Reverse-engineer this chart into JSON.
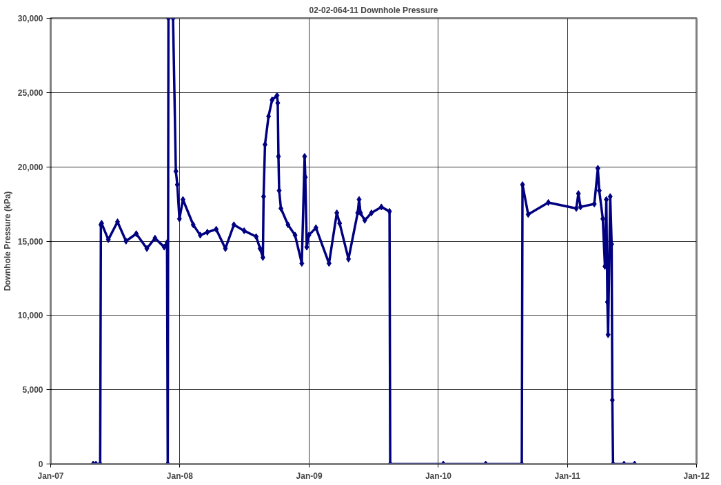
{
  "chart_data": {
    "type": "line",
    "title": "02-02-064-11 Downhole Pressure",
    "ylabel": "Downhole Pressure (kPa)",
    "x": [
      "2007-05-01",
      "2007-05-09",
      "2007-05-21",
      "2007-05-23",
      "2007-05-25",
      "2007-06-13",
      "2007-07-09",
      "2007-08-02",
      "2007-08-31",
      "2007-09-30",
      "2007-10-23",
      "2007-11-18",
      "2007-11-26",
      "2007-11-28",
      "2007-11-30",
      "2007-12-05",
      "2007-12-13",
      "2007-12-21",
      "2007-12-25",
      "2007-12-31",
      "2008-01-10",
      "2008-02-08",
      "2008-02-28",
      "2008-03-19",
      "2008-04-13",
      "2008-05-09",
      "2008-06-02",
      "2008-07-01",
      "2008-08-04",
      "2008-08-15",
      "2008-08-23",
      "2008-08-25",
      "2008-08-29",
      "2008-09-08",
      "2008-09-18",
      "2008-10-02",
      "2008-10-04",
      "2008-10-06",
      "2008-10-08",
      "2008-10-13",
      "2008-11-02",
      "2008-11-22",
      "2008-12-11",
      "2008-12-19",
      "2008-12-21",
      "2008-12-25",
      "2008-12-31",
      "2009-01-20",
      "2009-02-26",
      "2009-03-20",
      "2009-03-28",
      "2009-04-22",
      "2009-05-18",
      "2009-05-22",
      "2009-05-26",
      "2009-06-07",
      "2009-06-26",
      "2009-07-24",
      "2009-08-16",
      "2009-08-18",
      "2010-01-15",
      "2010-05-15",
      "2010-08-25",
      "2010-08-27",
      "2010-09-12",
      "2010-11-08",
      "2011-01-26",
      "2011-02-01",
      "2011-02-07",
      "2011-03-18",
      "2011-03-28",
      "2011-04-01",
      "2011-04-11",
      "2011-04-17",
      "2011-04-21",
      "2011-04-24",
      "2011-04-26",
      "2011-05-02",
      "2011-05-06",
      "2011-05-08",
      "2011-05-10",
      "2011-06-10",
      "2011-07-10"
    ],
    "series": [
      {
        "color": "#000080",
        "values": [
          0,
          0,
          0,
          16100,
          16200,
          15100,
          16300,
          15000,
          15500,
          14500,
          15200,
          14600,
          14900,
          0,
          30000,
          null,
          30000,
          19700,
          18800,
          16500,
          17800,
          16100,
          15400,
          15600,
          15800,
          14500,
          16100,
          15700,
          15300,
          14500,
          13900,
          18000,
          21500,
          23400,
          24500,
          24800,
          24300,
          20700,
          18400,
          17200,
          16100,
          15400,
          13500,
          20700,
          19300,
          14600,
          15400,
          15900,
          13500,
          16900,
          16200,
          13800,
          16900,
          17800,
          16900,
          16400,
          16900,
          17300,
          17000,
          0,
          0,
          0,
          0,
          18800,
          16800,
          17600,
          17200,
          18200,
          17300,
          17500,
          19900,
          18400,
          16500,
          13300,
          17800,
          10900,
          8700,
          18000,
          14800,
          4300,
          0,
          0,
          0
        ]
      }
    ],
    "xlim": [
      "2007-01-01",
      "2012-01-01"
    ],
    "xticks": [
      {
        "value": "2007-01-01",
        "label": "Jan-07"
      },
      {
        "value": "2008-01-01",
        "label": "Jan-08"
      },
      {
        "value": "2009-01-01",
        "label": "Jan-09"
      },
      {
        "value": "2010-01-01",
        "label": "Jan-10"
      },
      {
        "value": "2011-01-01",
        "label": "Jan-11"
      },
      {
        "value": "2012-01-01",
        "label": "Jan-12"
      }
    ],
    "ylim": [
      0,
      30000
    ],
    "yticks": [
      {
        "value": 0,
        "label": "0"
      },
      {
        "value": 5000,
        "label": "5,000"
      },
      {
        "value": 10000,
        "label": "10,000"
      },
      {
        "value": 15000,
        "label": "15,000"
      },
      {
        "value": 20000,
        "label": "20,000"
      },
      {
        "value": 25000,
        "label": "25,000"
      },
      {
        "value": 30000,
        "label": "30,000"
      }
    ],
    "grid": true,
    "marker": "diamond",
    "line_style": "solid"
  }
}
